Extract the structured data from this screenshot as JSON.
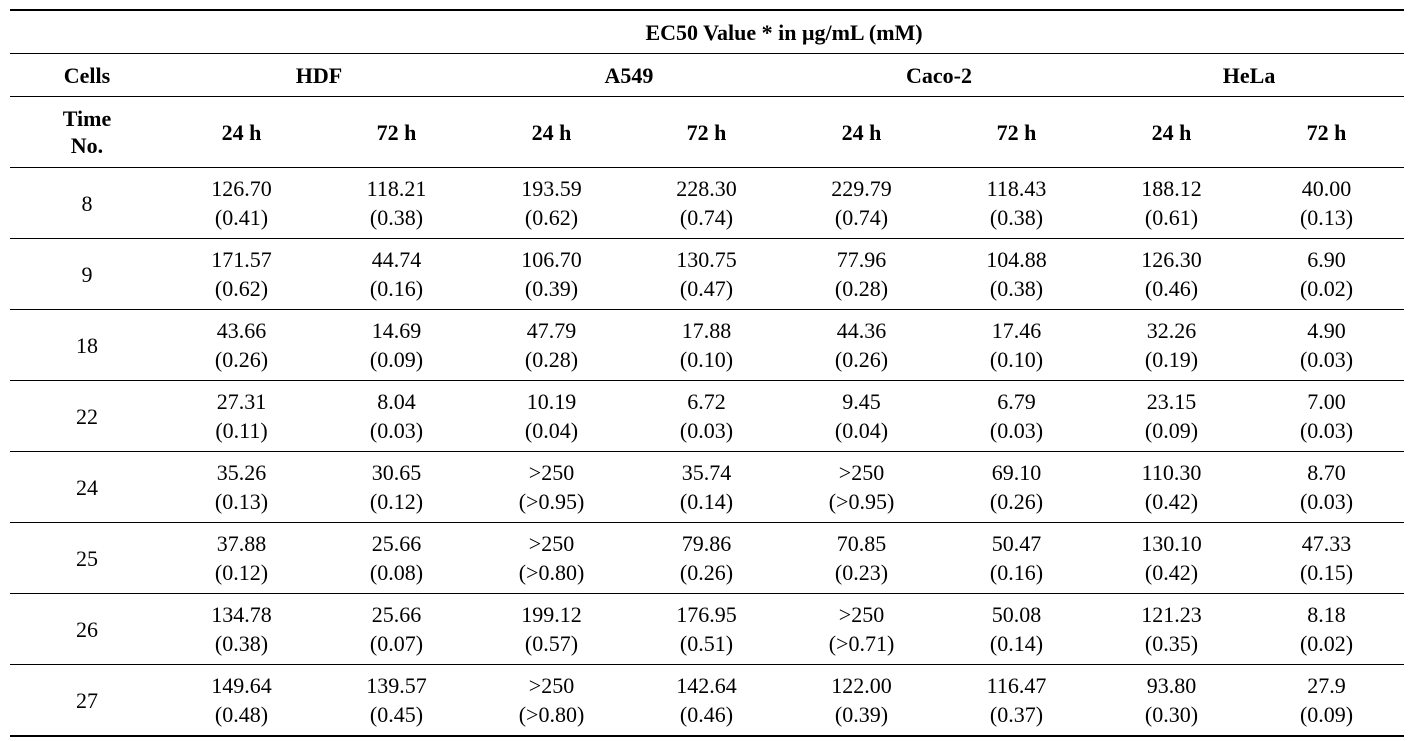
{
  "title": "EC50 Value * in μg/mL (mM)",
  "cells_label": "Cells",
  "time_label_line1": "Time",
  "time_label_line2": "No.",
  "cell_lines": [
    "HDF",
    "A549",
    "Caco-2",
    "HeLa"
  ],
  "times": [
    "24 h",
    "72 h",
    "24 h",
    "72 h",
    "24 h",
    "72 h",
    "24 h",
    "72 h"
  ],
  "rows": [
    {
      "no": "8",
      "values": [
        [
          "126.70",
          "(0.41)"
        ],
        [
          "118.21",
          "(0.38)"
        ],
        [
          "193.59",
          "(0.62)"
        ],
        [
          "228.30",
          "(0.74)"
        ],
        [
          "229.79",
          "(0.74)"
        ],
        [
          "118.43",
          "(0.38)"
        ],
        [
          "188.12",
          "(0.61)"
        ],
        [
          "40.00",
          "(0.13)"
        ]
      ]
    },
    {
      "no": "9",
      "values": [
        [
          "171.57",
          "(0.62)"
        ],
        [
          "44.74",
          "(0.16)"
        ],
        [
          "106.70",
          "(0.39)"
        ],
        [
          "130.75",
          "(0.47)"
        ],
        [
          "77.96",
          "(0.28)"
        ],
        [
          "104.88",
          "(0.38)"
        ],
        [
          "126.30",
          "(0.46)"
        ],
        [
          "6.90",
          "(0.02)"
        ]
      ]
    },
    {
      "no": "18",
      "values": [
        [
          "43.66",
          "(0.26)"
        ],
        [
          "14.69",
          "(0.09)"
        ],
        [
          "47.79",
          "(0.28)"
        ],
        [
          "17.88",
          "(0.10)"
        ],
        [
          "44.36",
          "(0.26)"
        ],
        [
          "17.46",
          "(0.10)"
        ],
        [
          "32.26",
          "(0.19)"
        ],
        [
          "4.90",
          "(0.03)"
        ]
      ]
    },
    {
      "no": "22",
      "values": [
        [
          "27.31",
          "(0.11)"
        ],
        [
          "8.04",
          "(0.03)"
        ],
        [
          "10.19",
          "(0.04)"
        ],
        [
          "6.72",
          "(0.03)"
        ],
        [
          "9.45",
          "(0.04)"
        ],
        [
          "6.79",
          "(0.03)"
        ],
        [
          "23.15",
          "(0.09)"
        ],
        [
          "7.00",
          "(0.03)"
        ]
      ]
    },
    {
      "no": "24",
      "values": [
        [
          "35.26",
          "(0.13)"
        ],
        [
          "30.65",
          "(0.12)"
        ],
        [
          ">250",
          "(>0.95)"
        ],
        [
          "35.74",
          "(0.14)"
        ],
        [
          ">250",
          "(>0.95)"
        ],
        [
          "69.10",
          "(0.26)"
        ],
        [
          "110.30",
          "(0.42)"
        ],
        [
          "8.70",
          "(0.03)"
        ]
      ]
    },
    {
      "no": "25",
      "values": [
        [
          "37.88",
          "(0.12)"
        ],
        [
          "25.66",
          "(0.08)"
        ],
        [
          ">250",
          "(>0.80)"
        ],
        [
          "79.86",
          "(0.26)"
        ],
        [
          "70.85",
          "(0.23)"
        ],
        [
          "50.47",
          "(0.16)"
        ],
        [
          "130.10",
          "(0.42)"
        ],
        [
          "47.33",
          "(0.15)"
        ]
      ]
    },
    {
      "no": "26",
      "values": [
        [
          "134.78",
          "(0.38)"
        ],
        [
          "25.66",
          "(0.07)"
        ],
        [
          "199.12",
          "(0.57)"
        ],
        [
          "176.95",
          "(0.51)"
        ],
        [
          ">250",
          "(>0.71)"
        ],
        [
          "50.08",
          "(0.14)"
        ],
        [
          "121.23",
          "(0.35)"
        ],
        [
          "8.18",
          "(0.02)"
        ]
      ]
    },
    {
      "no": "27",
      "values": [
        [
          "149.64",
          "(0.48)"
        ],
        [
          "139.57",
          "(0.45)"
        ],
        [
          ">250",
          "(>0.80)"
        ],
        [
          "142.64",
          "(0.46)"
        ],
        [
          "122.00",
          "(0.39)"
        ],
        [
          "116.47",
          "(0.37)"
        ],
        [
          "93.80",
          "(0.30)"
        ],
        [
          "27.9",
          "(0.09)"
        ]
      ]
    }
  ]
}
